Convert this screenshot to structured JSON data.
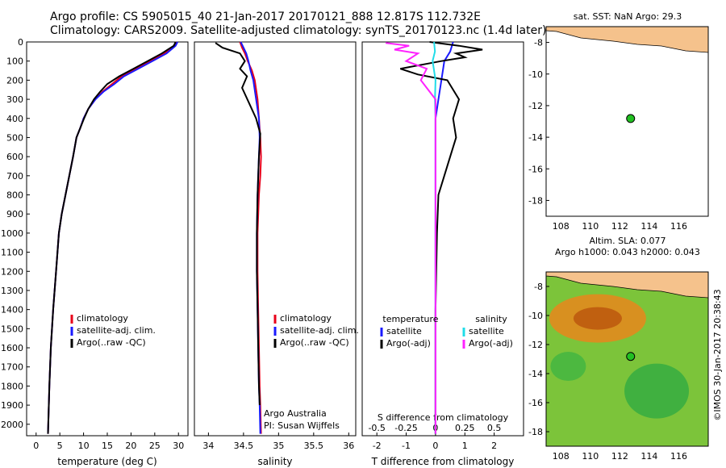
{
  "titles": {
    "line1": "Argo profile: CS 5905015_40 21-Jan-2017 20170121_888 12.817S 112.732E",
    "line2": "Climatology: CARS2009. Satellite-adjusted climatology: synTS_20170123.nc (1.4d later)"
  },
  "colors": {
    "climatology": "#e8001a",
    "satellite": "#1a1aff",
    "argo": "#000000",
    "sat_s": "#20dce8",
    "argo_s": "#ff22ff",
    "land": "#f5c28c",
    "float": "#22c022"
  },
  "chart_data": [
    {
      "type": "line",
      "panel": "temperature",
      "xlabel": "temperature (deg C)",
      "xlim": [
        -2,
        32
      ],
      "ylim": [
        2060,
        0
      ],
      "xticks": [
        0,
        5,
        10,
        15,
        20,
        25,
        30
      ],
      "yticks": [
        0,
        100,
        200,
        300,
        400,
        500,
        600,
        700,
        800,
        900,
        1000,
        1100,
        1200,
        1300,
        1400,
        1500,
        1600,
        1700,
        1800,
        1900,
        2000
      ],
      "legend": [
        "climatology",
        "satellite-adj. clim.",
        "Argo(..raw -QC)"
      ],
      "series": [
        {
          "name": "climatology",
          "x": [
            29.5,
            29.2,
            27,
            24,
            21,
            18,
            16,
            14,
            12.5,
            11,
            10,
            9.3,
            8.5,
            7.8,
            7,
            6.2,
            5.4,
            4.8,
            4.2,
            3.6,
            3.1,
            2.8,
            2.5
          ],
          "y": [
            0,
            20,
            60,
            100,
            140,
            180,
            220,
            260,
            300,
            350,
            400,
            450,
            500,
            600,
            700,
            800,
            900,
            1000,
            1200,
            1400,
            1600,
            1800,
            2050
          ]
        },
        {
          "name": "satellite-adj. clim.",
          "x": [
            29.8,
            29.4,
            27.5,
            24.5,
            21.5,
            18.5,
            16.5,
            14.2,
            12.5,
            11,
            10,
            9.3,
            8.5,
            7.8,
            7,
            6.2,
            5.4,
            4.8,
            4.2,
            3.6,
            3.1,
            2.8,
            2.5
          ],
          "y": [
            0,
            20,
            60,
            100,
            140,
            180,
            220,
            260,
            300,
            350,
            400,
            450,
            500,
            600,
            700,
            800,
            900,
            1000,
            1200,
            1400,
            1600,
            1800,
            2050
          ]
        },
        {
          "name": "Argo(..raw -QC)",
          "x": [
            29.4,
            29,
            26.5,
            23.5,
            20.5,
            17.5,
            15,
            13.5,
            12.2,
            11,
            10.1,
            9.3,
            8.5,
            7.8,
            7,
            6.2,
            5.4,
            4.8,
            4.2,
            3.6,
            3.1,
            2.8,
            2.5
          ],
          "y": [
            0,
            20,
            60,
            100,
            140,
            180,
            220,
            260,
            300,
            350,
            400,
            450,
            500,
            600,
            700,
            800,
            900,
            1000,
            1200,
            1400,
            1600,
            1800,
            2050
          ]
        }
      ]
    },
    {
      "type": "line",
      "panel": "salinity",
      "xlabel": "salinity",
      "xlim": [
        33.8,
        36.1
      ],
      "ylim": [
        2060,
        0
      ],
      "xticks": [
        34,
        34.5,
        35,
        35.5,
        36
      ],
      "legend": [
        "climatology",
        "satellite-adj. clim.",
        "Argo(..raw -QC)"
      ],
      "annotation": [
        "Argo Australia",
        "PI: Susan Wijffels"
      ],
      "series": [
        {
          "name": "climatology",
          "x": [
            34.45,
            34.48,
            34.52,
            34.56,
            34.62,
            34.66,
            34.7,
            34.72,
            34.74,
            34.75,
            34.74,
            34.72,
            34.7,
            34.7,
            34.71,
            34.72,
            34.73,
            34.74,
            34.75
          ],
          "y": [
            0,
            30,
            60,
            100,
            150,
            200,
            300,
            400,
            500,
            600,
            700,
            800,
            1000,
            1200,
            1400,
            1600,
            1800,
            1900,
            2050
          ]
        },
        {
          "name": "satellite-adj. clim.",
          "x": [
            34.46,
            34.5,
            34.54,
            34.57,
            34.6,
            34.64,
            34.68,
            34.72,
            34.73,
            34.72,
            34.71,
            34.7,
            34.69,
            34.69,
            34.7,
            34.71,
            34.72,
            34.73,
            34.74
          ],
          "y": [
            0,
            30,
            60,
            100,
            150,
            200,
            300,
            400,
            500,
            600,
            700,
            800,
            1000,
            1200,
            1400,
            1600,
            1800,
            1900,
            2050
          ]
        },
        {
          "name": "Argo(..raw -QC)",
          "x": [
            34.1,
            34.2,
            34.45,
            34.52,
            34.45,
            34.55,
            34.48,
            34.58,
            34.68,
            34.74,
            34.72,
            34.7,
            34.69,
            34.69,
            34.7,
            34.71,
            34.72,
            34.73
          ],
          "y": [
            5,
            30,
            60,
            100,
            140,
            180,
            240,
            320,
            400,
            480,
            600,
            800,
            1000,
            1200,
            1400,
            1600,
            1800,
            1900
          ]
        }
      ]
    },
    {
      "type": "line",
      "panel": "difference",
      "xlabel": "T difference from climatology",
      "xlabel2": "S difference from climatology",
      "xlim": [
        -2.5,
        3
      ],
      "ylim": [
        2060,
        0
      ],
      "xticks": [
        -2,
        -1,
        0,
        1,
        2
      ],
      "xticks2": [
        -0.5,
        -0.25,
        0,
        0.25,
        0.5
      ],
      "xticks2_labels": [
        "-0.5",
        "-0.25",
        "0",
        "0.25",
        "0.5"
      ],
      "legend_left_title": "temperature",
      "legend_right_title": "salinity",
      "legend_left": [
        "satellite",
        "Argo(-adj)"
      ],
      "legend_right": [
        "satellite",
        "Argo(-adj)"
      ],
      "series": [
        {
          "name": "T satellite",
          "x": [
            0.6,
            0.5,
            0.3,
            0.2,
            0.1,
            0,
            0,
            0,
            0
          ],
          "y": [
            0,
            50,
            100,
            200,
            300,
            400,
            600,
            1000,
            2050
          ]
        },
        {
          "name": "T Argo(-adj)",
          "x": [
            -0.2,
            0.8,
            1.6,
            0.7,
            1.0,
            0.2,
            -1.2,
            -0.6,
            0.4,
            0.8,
            0.6,
            0.7,
            0.5,
            0.3,
            0.1,
            0.05,
            0,
            0
          ],
          "y": [
            0,
            20,
            40,
            60,
            80,
            100,
            140,
            170,
            200,
            300,
            400,
            500,
            600,
            700,
            800,
            1000,
            1400,
            2050
          ]
        },
        {
          "name": "S satellite",
          "x": [
            -0.05,
            -0.02,
            -0.1,
            0,
            -0.02,
            0,
            0,
            0,
            0
          ],
          "y": [
            0,
            50,
            100,
            200,
            300,
            400,
            600,
            1000,
            2050
          ]
        },
        {
          "name": "S Argo(-adj)",
          "x": [
            -1.7,
            -0.9,
            -1.4,
            -0.6,
            -1,
            -0.3,
            -0.5,
            0,
            0,
            0
          ],
          "y": [
            5,
            20,
            40,
            60,
            100,
            140,
            200,
            300,
            600,
            2050
          ]
        }
      ]
    },
    {
      "type": "scatter",
      "panel": "map-sst",
      "title": "sat. SST: NaN Argo: 29.3",
      "xlim": [
        107,
        118
      ],
      "ylim": [
        -19,
        -7
      ],
      "xticks": [
        108,
        110,
        112,
        114,
        116
      ],
      "yticks": [
        -8,
        -10,
        -12,
        -14,
        -16,
        -18
      ],
      "points": [
        {
          "x": 112.732,
          "y": -12.817
        }
      ]
    },
    {
      "type": "heatmap",
      "panel": "map-sla",
      "title": "Altim. SLA: 0.077",
      "subtitle": "Argo h1000: 0.043 h2000: 0.043",
      "xlim": [
        107,
        118
      ],
      "ylim": [
        -19,
        -7
      ],
      "xticks": [
        108,
        110,
        112,
        114,
        116
      ],
      "yticks": [
        -8,
        -10,
        -12,
        -14,
        -16,
        -18
      ],
      "points": [
        {
          "x": 112.732,
          "y": -12.817
        }
      ]
    }
  ],
  "watermark": "©IMOS 30-Jan-2017 20:38:43"
}
